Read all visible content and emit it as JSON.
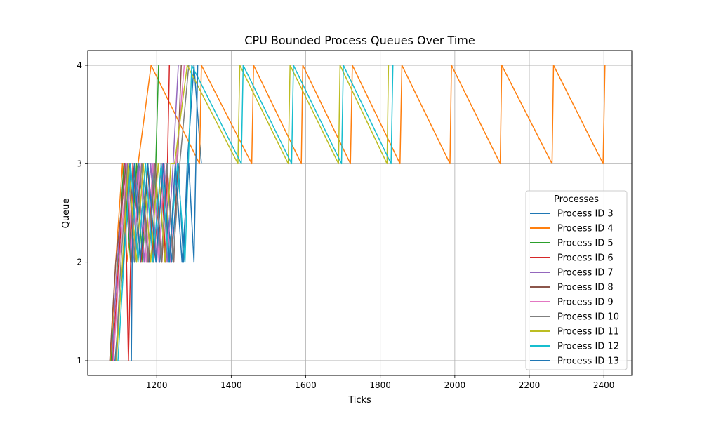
{
  "chart_data": {
    "type": "line",
    "title": "CPU Bounded Process Queues Over Time",
    "xlabel": "Ticks",
    "ylabel": "Queue",
    "xlim": [
      1015,
      2475
    ],
    "ylim": [
      0.85,
      4.15
    ],
    "xticks": [
      1200,
      1400,
      1600,
      1800,
      2000,
      2200,
      2400
    ],
    "yticks": [
      1,
      2,
      3,
      4
    ],
    "grid": true,
    "legend": {
      "title": "Processes",
      "position": "center-right"
    },
    "series": [
      {
        "name": "Process ID 3",
        "color": "#1f77b4",
        "points": [
          [
            1088,
            1
          ],
          [
            1110,
            2
          ],
          [
            1128,
            3
          ],
          [
            1140,
            2
          ],
          [
            1152,
            3
          ],
          [
            1180,
            2
          ],
          [
            1190,
            3
          ],
          [
            1208,
            2
          ],
          [
            1220,
            3
          ],
          [
            1240,
            2
          ],
          [
            1258,
            3
          ],
          [
            1272,
            2
          ],
          [
            1282,
            3
          ],
          [
            1300,
            4
          ],
          [
            1320,
            3
          ]
        ]
      },
      {
        "name": "Process ID 4",
        "color": "#ff7f0e",
        "points": [
          [
            1076,
            1
          ],
          [
            1090,
            2
          ],
          [
            1108,
            3
          ],
          [
            1120,
            2
          ],
          [
            1150,
            3
          ],
          [
            1185,
            4
          ],
          [
            1315,
            3
          ],
          [
            1320,
            4
          ],
          [
            1455,
            3
          ],
          [
            1460,
            4
          ],
          [
            1588,
            3
          ],
          [
            1592,
            4
          ],
          [
            1720,
            3
          ],
          [
            1725,
            4
          ],
          [
            1853,
            3
          ],
          [
            1858,
            4
          ],
          [
            1987,
            3
          ],
          [
            1991,
            4
          ],
          [
            2122,
            3
          ],
          [
            2126,
            4
          ],
          [
            2261,
            3
          ],
          [
            2265,
            4
          ],
          [
            2398,
            3
          ],
          [
            2403,
            4
          ]
        ]
      },
      {
        "name": "Process ID 5",
        "color": "#2ca02c",
        "points": [
          [
            1078,
            1
          ],
          [
            1095,
            2
          ],
          [
            1112,
            3
          ],
          [
            1130,
            2
          ],
          [
            1146,
            3
          ],
          [
            1162,
            2
          ],
          [
            1176,
            3
          ],
          [
            1190,
            2
          ],
          [
            1205,
            4
          ]
        ]
      },
      {
        "name": "Process ID 6",
        "color": "#d62728",
        "points": [
          [
            1082,
            1
          ],
          [
            1098,
            2
          ],
          [
            1114,
            3
          ],
          [
            1124,
            1
          ],
          [
            1136,
            3
          ],
          [
            1158,
            2
          ],
          [
            1176,
            3
          ],
          [
            1192,
            2
          ],
          [
            1212,
            3
          ],
          [
            1224,
            2
          ],
          [
            1234,
            4
          ]
        ]
      },
      {
        "name": "Process ID 7",
        "color": "#9467bd",
        "points": [
          [
            1080,
            1
          ],
          [
            1094,
            2
          ],
          [
            1116,
            3
          ],
          [
            1132,
            2
          ],
          [
            1150,
            3
          ],
          [
            1166,
            2
          ],
          [
            1184,
            3
          ],
          [
            1200,
            2
          ],
          [
            1216,
            3
          ],
          [
            1228,
            2
          ],
          [
            1244,
            3
          ],
          [
            1258,
            4
          ]
        ]
      },
      {
        "name": "Process ID 8",
        "color": "#8c564b",
        "points": [
          [
            1074,
            1
          ],
          [
            1090,
            2
          ],
          [
            1118,
            3
          ],
          [
            1134,
            2
          ],
          [
            1160,
            3
          ],
          [
            1178,
            2
          ],
          [
            1196,
            3
          ],
          [
            1214,
            2
          ],
          [
            1228,
            3
          ],
          [
            1246,
            2
          ],
          [
            1266,
            4
          ]
        ]
      },
      {
        "name": "Process ID 9",
        "color": "#e377c2",
        "points": [
          [
            1084,
            1
          ],
          [
            1100,
            2
          ],
          [
            1120,
            3
          ],
          [
            1136,
            2
          ],
          [
            1156,
            3
          ],
          [
            1172,
            2
          ],
          [
            1190,
            3
          ],
          [
            1206,
            2
          ],
          [
            1220,
            3
          ],
          [
            1236,
            2
          ],
          [
            1252,
            3
          ],
          [
            1274,
            4
          ]
        ]
      },
      {
        "name": "Process ID 10",
        "color": "#7f7f7f",
        "points": [
          [
            1090,
            1
          ],
          [
            1104,
            2
          ],
          [
            1122,
            3
          ],
          [
            1142,
            2
          ],
          [
            1160,
            3
          ],
          [
            1176,
            2
          ],
          [
            1194,
            3
          ],
          [
            1212,
            2
          ],
          [
            1228,
            3
          ],
          [
            1244,
            2
          ],
          [
            1262,
            3
          ],
          [
            1286,
            4
          ]
        ]
      },
      {
        "name": "Process ID 11",
        "color": "#bcbd22",
        "points": [
          [
            1092,
            1
          ],
          [
            1108,
            2
          ],
          [
            1124,
            3
          ],
          [
            1146,
            2
          ],
          [
            1164,
            3
          ],
          [
            1184,
            2
          ],
          [
            1204,
            3
          ],
          [
            1222,
            2
          ],
          [
            1238,
            3
          ],
          [
            1248,
            3
          ],
          [
            1282,
            4
          ],
          [
            1418,
            3
          ],
          [
            1423,
            4
          ],
          [
            1553,
            3
          ],
          [
            1558,
            4
          ],
          [
            1688,
            3
          ],
          [
            1692,
            4
          ],
          [
            1818,
            3
          ],
          [
            1822,
            4
          ]
        ]
      },
      {
        "name": "Process ID 12",
        "color": "#17becf",
        "points": [
          [
            1096,
            1
          ],
          [
            1112,
            2
          ],
          [
            1130,
            3
          ],
          [
            1150,
            2
          ],
          [
            1170,
            3
          ],
          [
            1190,
            2
          ],
          [
            1212,
            3
          ],
          [
            1232,
            2
          ],
          [
            1256,
            3
          ],
          [
            1276,
            2
          ],
          [
            1294,
            4
          ],
          [
            1427,
            3
          ],
          [
            1432,
            4
          ],
          [
            1562,
            3
          ],
          [
            1567,
            4
          ],
          [
            1696,
            3
          ],
          [
            1701,
            4
          ],
          [
            1829,
            3
          ],
          [
            1834,
            4
          ]
        ]
      },
      {
        "name": "Process ID 13",
        "color": "#1f77b4",
        "points": [
          [
            1132,
            1
          ],
          [
            1134,
            2
          ],
          [
            1140,
            3
          ],
          [
            1156,
            2
          ],
          [
            1176,
            3
          ],
          [
            1198,
            2
          ],
          [
            1218,
            3
          ],
          [
            1234,
            2
          ],
          [
            1250,
            3
          ],
          [
            1268,
            2
          ],
          [
            1286,
            3
          ],
          [
            1300,
            2
          ],
          [
            1310,
            4
          ]
        ]
      }
    ]
  }
}
